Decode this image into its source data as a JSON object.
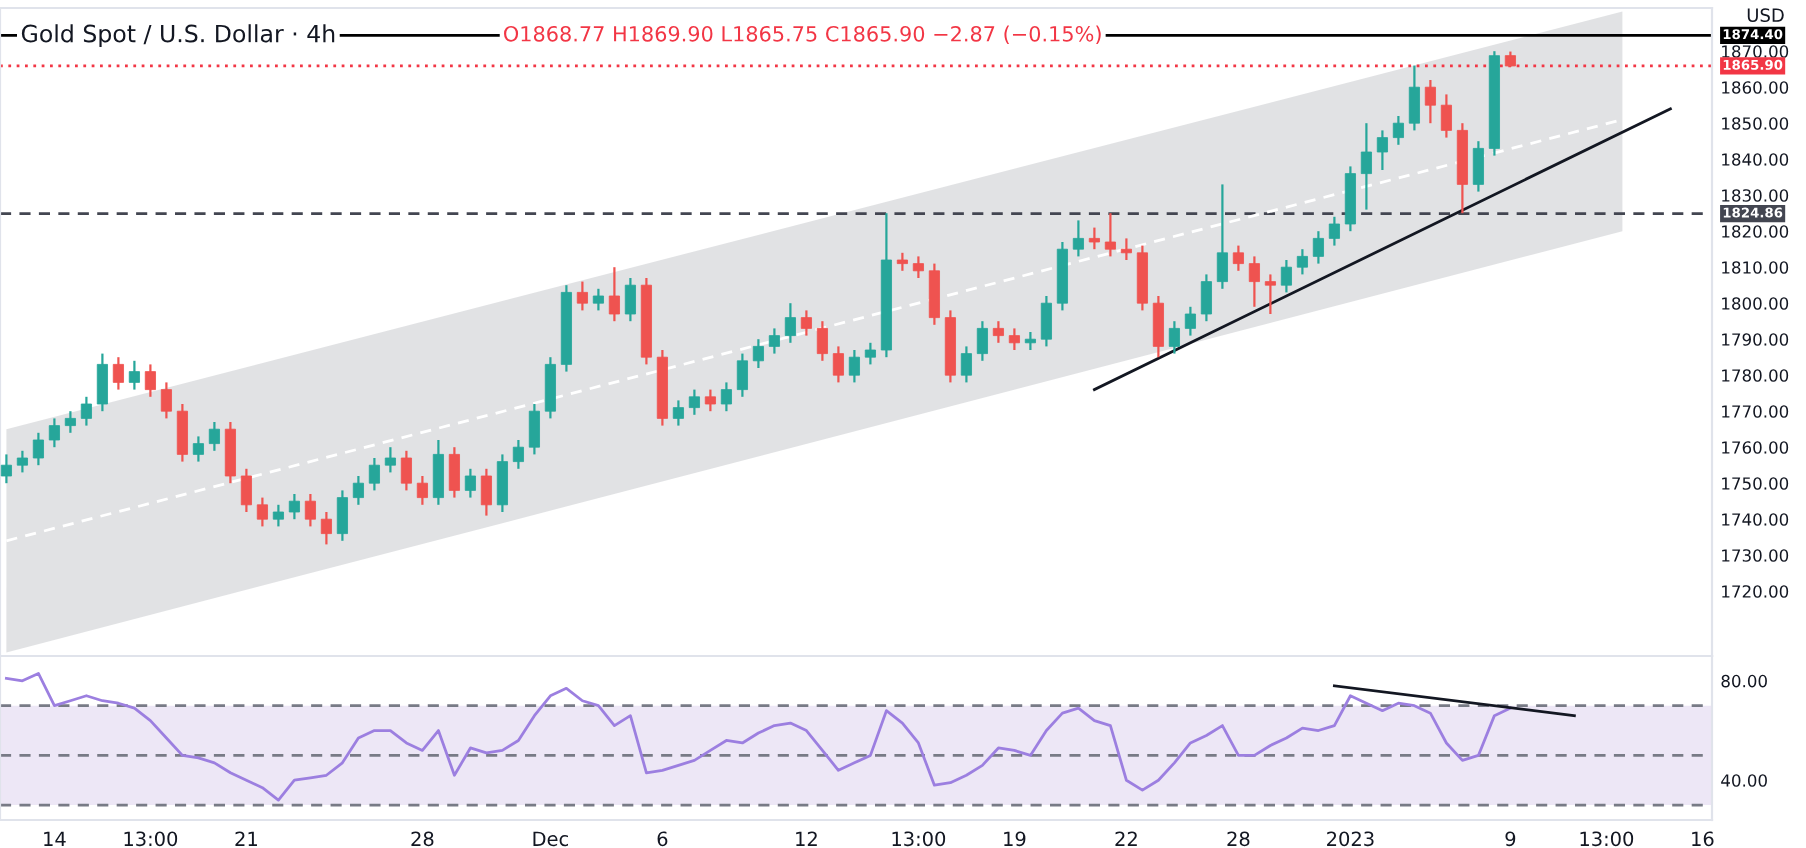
{
  "chart_data": [
    {
      "type": "candlestick",
      "title": "Gold Spot / U.S. Dollar · 4h",
      "subtitle": "O1868.77 H1869.90 L1865.75 C1865.90 −2.87 (−0.15%)",
      "ylabel": "USD",
      "categories": [
        null,
        null,
        null,
        null,
        null,
        null,
        null,
        null,
        null,
        null,
        null,
        null,
        null,
        null,
        null,
        null,
        null,
        null,
        null,
        null,
        null,
        null,
        null,
        null,
        null,
        null,
        null,
        null,
        null,
        null,
        null,
        null,
        null,
        null,
        null,
        null,
        null,
        null,
        null,
        null,
        null,
        null,
        null,
        null,
        null,
        null,
        null,
        null,
        null,
        null,
        null,
        null,
        null,
        null,
        null,
        null,
        null,
        null,
        null,
        null,
        null,
        null,
        null,
        null,
        null,
        null,
        null,
        null,
        null,
        null,
        null,
        null,
        null,
        null,
        null,
        null,
        null,
        null,
        null,
        null,
        null,
        null,
        null,
        null,
        null,
        null,
        null,
        null,
        null,
        null,
        null,
        null,
        null,
        null,
        null,
        null,
        null,
        null,
        null,
        null,
        null,
        null,
        null,
        null,
        null,
        null,
        null
      ],
      "ohlc": [
        [
          1752,
          1758,
          1750,
          1755
        ],
        [
          1755,
          1759,
          1753,
          1757
        ],
        [
          1757,
          1764,
          1755,
          1762
        ],
        [
          1762,
          1768,
          1760,
          1766
        ],
        [
          1766,
          1770,
          1764,
          1768
        ],
        [
          1768,
          1774,
          1766,
          1772
        ],
        [
          1772,
          1786,
          1770,
          1783
        ],
        [
          1783,
          1785,
          1776,
          1778
        ],
        [
          1778,
          1784,
          1776,
          1781
        ],
        [
          1781,
          1783,
          1774,
          1776
        ],
        [
          1776,
          1778,
          1768,
          1770
        ],
        [
          1770,
          1772,
          1756,
          1758
        ],
        [
          1758,
          1763,
          1756,
          1761
        ],
        [
          1761,
          1767,
          1759,
          1765
        ],
        [
          1765,
          1767,
          1750,
          1752
        ],
        [
          1752,
          1754,
          1742,
          1744
        ],
        [
          1744,
          1746,
          1738,
          1740
        ],
        [
          1740,
          1744,
          1738,
          1742
        ],
        [
          1742,
          1747,
          1740,
          1745
        ],
        [
          1745,
          1747,
          1738,
          1740
        ],
        [
          1740,
          1742,
          1733,
          1736
        ],
        [
          1736,
          1748,
          1734,
          1746
        ],
        [
          1746,
          1752,
          1744,
          1750
        ],
        [
          1750,
          1757,
          1748,
          1755
        ],
        [
          1755,
          1760,
          1753,
          1757
        ],
        [
          1757,
          1759,
          1748,
          1750
        ],
        [
          1750,
          1752,
          1744,
          1746
        ],
        [
          1746,
          1762,
          1744,
          1758
        ],
        [
          1758,
          1760,
          1746,
          1748
        ],
        [
          1748,
          1754,
          1746,
          1752
        ],
        [
          1752,
          1754,
          1741,
          1744
        ],
        [
          1744,
          1758,
          1742,
          1756
        ],
        [
          1756,
          1762,
          1754,
          1760
        ],
        [
          1760,
          1772,
          1758,
          1770
        ],
        [
          1770,
          1785,
          1768,
          1783
        ],
        [
          1783,
          1805,
          1781,
          1803
        ],
        [
          1803,
          1806,
          1798,
          1800
        ],
        [
          1800,
          1804,
          1798,
          1802
        ],
        [
          1802,
          1810,
          1795,
          1797
        ],
        [
          1797,
          1807,
          1795,
          1805
        ],
        [
          1805,
          1807,
          1783,
          1785
        ],
        [
          1785,
          1787,
          1766,
          1768
        ],
        [
          1768,
          1773,
          1766,
          1771
        ],
        [
          1771,
          1776,
          1769,
          1774
        ],
        [
          1774,
          1776,
          1770,
          1772
        ],
        [
          1772,
          1778,
          1770,
          1776
        ],
        [
          1776,
          1786,
          1774,
          1784
        ],
        [
          1784,
          1790,
          1782,
          1788
        ],
        [
          1788,
          1793,
          1786,
          1791
        ],
        [
          1791,
          1800,
          1789,
          1796
        ],
        [
          1796,
          1798,
          1791,
          1793
        ],
        [
          1793,
          1795,
          1784,
          1786
        ],
        [
          1786,
          1788,
          1778,
          1780
        ],
        [
          1780,
          1787,
          1778,
          1785
        ],
        [
          1785,
          1789,
          1783,
          1787
        ],
        [
          1787,
          1825,
          1785,
          1812
        ],
        [
          1812,
          1814,
          1809,
          1811
        ],
        [
          1811,
          1813,
          1807,
          1809
        ],
        [
          1809,
          1811,
          1794,
          1796
        ],
        [
          1796,
          1798,
          1778,
          1780
        ],
        [
          1780,
          1788,
          1778,
          1786
        ],
        [
          1786,
          1795,
          1784,
          1793
        ],
        [
          1793,
          1795,
          1789,
          1791
        ],
        [
          1791,
          1793,
          1787,
          1789
        ],
        [
          1789,
          1792,
          1787,
          1790
        ],
        [
          1790,
          1802,
          1788,
          1800
        ],
        [
          1800,
          1817,
          1798,
          1815
        ],
        [
          1815,
          1823,
          1813,
          1818
        ],
        [
          1818,
          1821,
          1815,
          1817
        ],
        [
          1817,
          1825,
          1813,
          1815
        ],
        [
          1815,
          1818,
          1812,
          1814
        ],
        [
          1814,
          1816,
          1798,
          1800
        ],
        [
          1800,
          1802,
          1785,
          1788
        ],
        [
          1788,
          1795,
          1786,
          1793
        ],
        [
          1793,
          1799,
          1791,
          1797
        ],
        [
          1797,
          1808,
          1795,
          1806
        ],
        [
          1806,
          1833,
          1804,
          1814
        ],
        [
          1814,
          1816,
          1809,
          1811
        ],
        [
          1811,
          1813,
          1799,
          1806
        ],
        [
          1806,
          1808,
          1797,
          1805
        ],
        [
          1805,
          1812,
          1803,
          1810
        ],
        [
          1810,
          1815,
          1808,
          1813
        ],
        [
          1813,
          1820,
          1811,
          1818
        ],
        [
          1818,
          1824,
          1816,
          1822
        ],
        [
          1822,
          1838,
          1820,
          1836
        ],
        [
          1836,
          1850,
          1826,
          1842
        ],
        [
          1842,
          1848,
          1837,
          1846
        ],
        [
          1846,
          1852,
          1844,
          1850
        ],
        [
          1850,
          1866,
          1848,
          1860
        ],
        [
          1860,
          1862,
          1850,
          1855
        ],
        [
          1855,
          1858,
          1846,
          1848
        ],
        [
          1848,
          1850,
          1825,
          1833
        ],
        [
          1833,
          1845,
          1831,
          1843
        ],
        [
          1843,
          1870,
          1841,
          1868.77
        ],
        [
          1868.77,
          1869.9,
          1865.75,
          1865.9
        ],
        null,
        null,
        null,
        null,
        null,
        null,
        null,
        null,
        null,
        null,
        null,
        null
      ],
      "colors": [
        "#26a69a",
        "#26a69a",
        "#26a69a",
        "#26a69a",
        "#26a69a",
        "#26a69a",
        "#26a69a",
        "#ef5350",
        "#26a69a",
        "#ef5350",
        "#ef5350",
        "#ef5350",
        "#26a69a",
        "#26a69a",
        "#ef5350",
        "#ef5350",
        "#ef5350",
        "#26a69a",
        "#26a69a",
        "#ef5350",
        "#ef5350",
        "#26a69a",
        "#26a69a",
        "#26a69a",
        "#26a69a",
        "#ef5350",
        "#ef5350",
        "#26a69a",
        "#ef5350",
        "#26a69a",
        "#ef5350",
        "#26a69a",
        "#26a69a",
        "#26a69a",
        "#26a69a",
        "#26a69a",
        "#ef5350",
        "#26a69a",
        "#ef5350",
        "#26a69a",
        "#ef5350",
        "#ef5350",
        "#26a69a",
        "#26a69a",
        "#ef5350",
        "#26a69a",
        "#26a69a",
        "#26a69a",
        "#26a69a",
        "#26a69a",
        "#ef5350",
        "#ef5350",
        "#ef5350",
        "#26a69a",
        "#26a69a",
        "#26a69a",
        "#ef5350",
        "#ef5350",
        "#ef5350",
        "#ef5350",
        "#26a69a",
        "#26a69a",
        "#ef5350",
        "#ef5350",
        "#26a69a",
        "#26a69a",
        "#26a69a",
        "#26a69a",
        "#ef5350",
        "#ef5350",
        "#ef5350",
        "#ef5350",
        "#ef5350",
        "#26a69a",
        "#26a69a",
        "#26a69a",
        "#26a69a",
        "#ef5350",
        "#ef5350",
        "#ef5350",
        "#26a69a",
        "#26a69a",
        "#26a69a",
        "#26a69a",
        "#26a69a",
        "#26a69a",
        "#26a69a",
        "#26a69a",
        "#26a69a",
        "#ef5350",
        "#ef5350",
        "#ef5350",
        "#26a69a",
        "#26a69a",
        "#ef5350",
        null,
        null,
        null,
        null,
        null,
        null,
        null,
        null,
        null,
        null,
        null,
        null
      ],
      "series": [
        {
          "type": "line",
          "values": [
            1734,
            null,
            null,
            null,
            null,
            null,
            null,
            null,
            null,
            null,
            null,
            null,
            null,
            null,
            null,
            null,
            null,
            null,
            null,
            null,
            null,
            null,
            null,
            null,
            null,
            null,
            null,
            null,
            null,
            null,
            null,
            null,
            null,
            null,
            null,
            null,
            null,
            null,
            null,
            null,
            null,
            null,
            null,
            null,
            null,
            null,
            null,
            null,
            null,
            null,
            null,
            null,
            null,
            null,
            null,
            null,
            null,
            null,
            null,
            null,
            null,
            null,
            null,
            null,
            null,
            null,
            null,
            null,
            null,
            null,
            null,
            null,
            null,
            null,
            null,
            null,
            null,
            null,
            null,
            null,
            null,
            null,
            null,
            null,
            null,
            null,
            null,
            null,
            null,
            null,
            null,
            null,
            null,
            null,
            null,
            null,
            null,
            null,
            null,
            null,
            null,
            1851,
            null,
            null,
            null,
            null,
            null
          ],
          "lower": [
            1703,
            null,
            null,
            null,
            null,
            null,
            null,
            null,
            null,
            null,
            null,
            null,
            null,
            null,
            null,
            null,
            null,
            null,
            null,
            null,
            null,
            null,
            null,
            null,
            null,
            null,
            null,
            null,
            null,
            null,
            null,
            null,
            null,
            null,
            null,
            null,
            null,
            null,
            null,
            null,
            null,
            null,
            null,
            null,
            null,
            null,
            null,
            null,
            null,
            null,
            null,
            null,
            null,
            null,
            null,
            null,
            null,
            null,
            null,
            null,
            null,
            null,
            null,
            null,
            null,
            null,
            null,
            null,
            null,
            null,
            null,
            null,
            null,
            null,
            null,
            null,
            null,
            null,
            null,
            null,
            null,
            null,
            null,
            null,
            null,
            null,
            null,
            null,
            null,
            null,
            null,
            null,
            null,
            null,
            null,
            null,
            null,
            null,
            null,
            null,
            null,
            1820,
            null,
            null,
            null,
            null,
            null
          ],
          "upper": [
            1765,
            null,
            null,
            null,
            null,
            null,
            null,
            null,
            null,
            null,
            null,
            null,
            null,
            null,
            null,
            null,
            null,
            null,
            null,
            null,
            null,
            null,
            null,
            null,
            null,
            null,
            null,
            null,
            null,
            null,
            null,
            null,
            null,
            null,
            null,
            null,
            null,
            null,
            null,
            null,
            null,
            null,
            null,
            null,
            null,
            null,
            null,
            null,
            null,
            null,
            null,
            null,
            null,
            null,
            null,
            null,
            null,
            null,
            null,
            null,
            null,
            null,
            null,
            null,
            null,
            null,
            null,
            null,
            null,
            null,
            null,
            null,
            null,
            null,
            null,
            null,
            null,
            null,
            null,
            null,
            null,
            null,
            null,
            null,
            null,
            null,
            null,
            null,
            null,
            null,
            null,
            null,
            null,
            null,
            null,
            null,
            null,
            null,
            null,
            null,
            null,
            1881,
            null,
            null,
            null,
            null,
            null
          ],
          "color": "#ffffff",
          "line_style": "dashed"
        },
        {
          "type": "line",
          "values": [
            null,
            null,
            null,
            null,
            null,
            null,
            null,
            null,
            null,
            null,
            null,
            null,
            null,
            null,
            null,
            null,
            null,
            null,
            null,
            null,
            null,
            null,
            null,
            null,
            null,
            null,
            null,
            null,
            null,
            null,
            null,
            null,
            null,
            null,
            null,
            null,
            null,
            null,
            null,
            null,
            null,
            null,
            null,
            null,
            null,
            null,
            null,
            null,
            null,
            null,
            null,
            null,
            null,
            null,
            null,
            null,
            null,
            null,
            null,
            null,
            null,
            null,
            null,
            null,
            null,
            null,
            null,
            null,
            1776,
            null,
            null,
            null,
            null,
            null,
            null,
            null,
            null,
            null,
            null,
            null,
            null,
            null,
            null,
            null,
            null,
            null,
            null,
            null,
            null,
            null,
            null,
            null,
            null,
            null,
            null,
            null,
            null,
            null,
            null,
            null,
            null,
            null,
            null,
            null,
            1854,
            null,
            null
          ],
          "color": "#131722",
          "line_style": "solid"
        }
      ],
      "ref_lines": [
        {
          "axis": "y",
          "value": 1874.4,
          "label": "1874.40",
          "color": "#000000",
          "line_style": "solid"
        },
        {
          "axis": "y",
          "value": 1865.9,
          "label": "1865.90",
          "color": "#f23645",
          "line_style": "dotted"
        },
        {
          "axis": "y",
          "value": 1824.86,
          "label": "1824.86",
          "color": "#434651",
          "line_style": "dashed"
        }
      ],
      "ylim": [
        1702,
        1882
      ],
      "yticks": [
        {
          "value": 1720,
          "label": "1720.00"
        },
        {
          "value": 1730,
          "label": "1730.00"
        },
        {
          "value": 1740,
          "label": "1740.00"
        },
        {
          "value": 1750,
          "label": "1750.00"
        },
        {
          "value": 1760,
          "label": "1760.00"
        },
        {
          "value": 1770,
          "label": "1770.00"
        },
        {
          "value": 1780,
          "label": "1780.00"
        },
        {
          "value": 1790,
          "label": "1790.00"
        },
        {
          "value": 1800,
          "label": "1800.00"
        },
        {
          "value": 1810,
          "label": "1810.00"
        },
        {
          "value": 1820,
          "label": "1820.00"
        },
        {
          "value": 1830,
          "label": "1830.00"
        },
        {
          "value": 1840,
          "label": "1840.00"
        },
        {
          "value": 1850,
          "label": "1850.00"
        },
        {
          "value": 1860,
          "label": "1860.00"
        },
        {
          "value": 1870,
          "label": "1870.00"
        }
      ],
      "tick_labels": "y"
    },
    {
      "type": "line",
      "categories": [
        null,
        null,
        null,
        "14",
        null,
        null,
        null,
        null,
        null,
        "13:00",
        null,
        null,
        null,
        null,
        null,
        "21",
        null,
        null,
        null,
        null,
        null,
        null,
        null,
        null,
        null,
        null,
        "28",
        null,
        null,
        null,
        null,
        null,
        null,
        null,
        "Dec",
        null,
        null,
        null,
        null,
        null,
        null,
        "6",
        null,
        null,
        null,
        null,
        null,
        null,
        null,
        null,
        "12",
        null,
        null,
        null,
        null,
        null,
        null,
        "13:00",
        null,
        null,
        null,
        null,
        null,
        "19",
        null,
        null,
        null,
        null,
        null,
        null,
        "22",
        null,
        null,
        null,
        null,
        null,
        null,
        "28",
        null,
        null,
        null,
        null,
        null,
        null,
        "2023",
        null,
        null,
        null,
        null,
        null,
        null,
        null,
        null,
        null,
        "9",
        null,
        null,
        null,
        null,
        null,
        "13:00",
        null,
        null,
        null,
        null,
        null,
        "16"
      ],
      "series": [
        {
          "type": "line",
          "color": "#9c7fe0",
          "values": [
            81,
            80,
            83,
            70,
            72,
            74,
            72,
            71,
            69,
            64,
            57,
            50,
            49,
            47,
            43,
            40,
            37,
            32,
            40,
            41,
            42,
            47,
            57,
            60,
            60,
            55,
            52,
            60,
            42,
            53,
            51,
            52,
            56,
            66,
            74,
            77,
            72,
            70,
            62,
            66,
            43,
            44,
            46,
            48,
            52,
            56,
            55,
            59,
            62,
            63,
            60,
            52,
            44,
            47,
            50,
            68,
            63,
            55,
            38,
            39,
            42,
            46,
            53,
            52,
            50,
            60,
            67,
            69,
            64,
            62,
            40,
            36,
            40,
            47,
            55,
            58,
            62,
            50,
            50,
            54,
            57,
            61,
            60,
            62,
            74,
            71,
            68,
            71,
            70,
            67,
            55,
            48,
            50,
            66,
            69,
            null,
            null,
            null,
            null,
            null,
            null,
            null,
            null,
            null,
            null,
            null,
            null
          ]
        },
        {
          "type": "line",
          "values": [
            null,
            null,
            null,
            null,
            null,
            null,
            null,
            null,
            null,
            null,
            null,
            null,
            null,
            null,
            null,
            null,
            null,
            null,
            null,
            null,
            null,
            null,
            null,
            null,
            null,
            null,
            null,
            null,
            null,
            null,
            null,
            null,
            null,
            null,
            null,
            null,
            null,
            null,
            null,
            null,
            null,
            null,
            null,
            null,
            null,
            null,
            null,
            null,
            null,
            null,
            null,
            null,
            null,
            null,
            null,
            null,
            null,
            null,
            null,
            null,
            null,
            null,
            null,
            null,
            null,
            null,
            null,
            null,
            null,
            null,
            null,
            null,
            null,
            null,
            null,
            null,
            null,
            null,
            null,
            null,
            null,
            null,
            null,
            78,
            null,
            null,
            null,
            null,
            null,
            null,
            null,
            null,
            null,
            null,
            null,
            null,
            null,
            null,
            66,
            null,
            null,
            null,
            null,
            null,
            null,
            null,
            null
          ],
          "color": "#131722",
          "line_style": "solid"
        }
      ],
      "bands": [
        {
          "axis": "y",
          "from": 30,
          "to": 70,
          "color": "#ede7f6"
        }
      ],
      "ref_lines": [
        {
          "axis": "y",
          "value": 70,
          "color": "#787b86",
          "line_style": "dashed"
        },
        {
          "axis": "y",
          "value": 50,
          "color": "#787b86",
          "line_style": "dashed"
        },
        {
          "axis": "y",
          "value": 30,
          "color": "#787b86",
          "line_style": "dashed"
        }
      ],
      "ylim": [
        24,
        90
      ],
      "yticks": [
        {
          "value": 80,
          "label": "80.00"
        },
        {
          "value": 40,
          "label": "40.00"
        }
      ]
    }
  ]
}
